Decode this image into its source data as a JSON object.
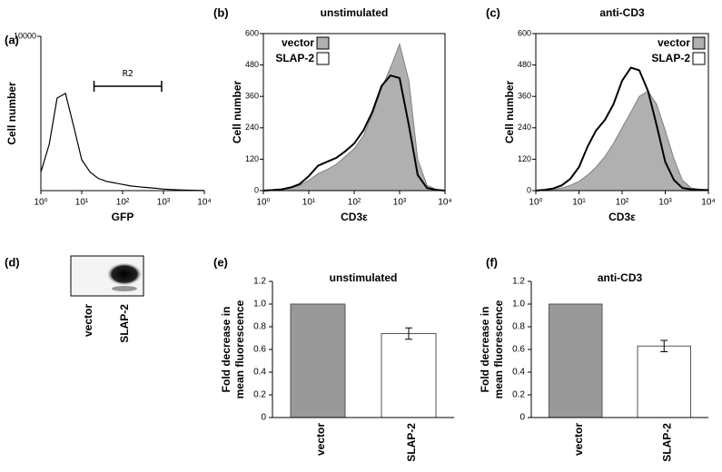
{
  "chart_data": [
    {
      "type": "line",
      "panel": "(a)",
      "ylabel": "Cell number",
      "xlabel": "GFP",
      "log_x": true,
      "frame": false,
      "xlim": [
        1,
        10000
      ],
      "xticks": [
        {
          "value": 1,
          "label": "10⁰"
        },
        {
          "value": 10,
          "label": "10¹"
        },
        {
          "value": 100,
          "label": "10²"
        },
        {
          "value": 1000,
          "label": "10³"
        },
        {
          "value": 10000,
          "label": "10⁴"
        }
      ],
      "ylim": [
        0,
        10000
      ],
      "yticks": [
        10000
      ],
      "gate": {
        "label": "R2",
        "range": [
          20,
          900
        ]
      },
      "series": [
        {
          "color": "#ffffff",
          "line": "#000000",
          "fill": false,
          "x": [
            1,
            1.6,
            2.5,
            4,
            6.3,
            10,
            16,
            25,
            40,
            63,
            100,
            160,
            250,
            400,
            630,
            1000,
            1600,
            2500,
            4000,
            6300,
            10000
          ],
          "values": [
            1200,
            3000,
            6000,
            6300,
            4200,
            2000,
            1200,
            800,
            600,
            500,
            400,
            300,
            250,
            200,
            150,
            100,
            70,
            50,
            30,
            20,
            10
          ]
        }
      ]
    },
    {
      "type": "line",
      "panel": "(b)",
      "title": "unstimulated",
      "ylabel": "Cell number",
      "xlabel": "CD3ε",
      "log_x": true,
      "frame": true,
      "legend": "upper left",
      "xlim": [
        1,
        10000
      ],
      "xticks": [
        {
          "value": 1,
          "label": "10⁰"
        },
        {
          "value": 10,
          "label": "10¹"
        },
        {
          "value": 100,
          "label": "10²"
        },
        {
          "value": 1000,
          "label": "10³"
        },
        {
          "value": 10000,
          "label": "10⁴"
        }
      ],
      "ylim": [
        0,
        600
      ],
      "yticks": [
        0,
        120,
        240,
        360,
        480,
        600
      ],
      "series": [
        {
          "name": "vector",
          "color": "#b0b0b0",
          "line": "#808080",
          "fill": true,
          "x": [
            1,
            1.6,
            2.5,
            4,
            6.3,
            10,
            16,
            25,
            40,
            63,
            100,
            160,
            250,
            400,
            630,
            1000,
            1600,
            2500,
            4000,
            6300,
            10000
          ],
          "values": [
            0,
            2,
            5,
            10,
            20,
            40,
            65,
            80,
            100,
            130,
            160,
            210,
            290,
            390,
            470,
            560,
            420,
            120,
            20,
            5,
            0
          ]
        },
        {
          "name": "SLAP-2",
          "color": "#ffffff",
          "line": "#000000",
          "fill": false,
          "x": [
            1,
            1.6,
            2.5,
            4,
            6.3,
            10,
            16,
            25,
            40,
            63,
            100,
            160,
            250,
            400,
            630,
            1000,
            1600,
            2500,
            4000,
            6300,
            10000
          ],
          "values": [
            0,
            2,
            5,
            12,
            25,
            55,
            95,
            110,
            125,
            150,
            180,
            230,
            300,
            400,
            440,
            430,
            250,
            60,
            10,
            3,
            0
          ]
        }
      ]
    },
    {
      "type": "line",
      "panel": "(c)",
      "title": "anti-CD3",
      "ylabel": "Cell number",
      "xlabel": "CD3ε",
      "log_x": true,
      "frame": true,
      "legend": "upper right",
      "xlim": [
        1,
        10000
      ],
      "xticks": [
        {
          "value": 1,
          "label": "10⁰"
        },
        {
          "value": 10,
          "label": "10¹"
        },
        {
          "value": 100,
          "label": "10²"
        },
        {
          "value": 1000,
          "label": "10³"
        },
        {
          "value": 10000,
          "label": "10⁴"
        }
      ],
      "ylim": [
        0,
        600
      ],
      "yticks": [
        0,
        120,
        240,
        360,
        480,
        600
      ],
      "series": [
        {
          "name": "vector",
          "color": "#b0b0b0",
          "line": "#808080",
          "fill": true,
          "x": [
            1,
            1.6,
            2.5,
            4,
            6.3,
            10,
            16,
            25,
            40,
            63,
            100,
            160,
            250,
            400,
            630,
            1000,
            1600,
            2500,
            4000,
            6300,
            10000
          ],
          "values": [
            0,
            2,
            5,
            10,
            20,
            35,
            60,
            90,
            130,
            180,
            240,
            300,
            360,
            380,
            330,
            230,
            120,
            40,
            10,
            5,
            2
          ]
        },
        {
          "name": "SLAP-2",
          "color": "#ffffff",
          "line": "#000000",
          "fill": false,
          "x": [
            1,
            1.6,
            2.5,
            4,
            6.3,
            10,
            16,
            25,
            40,
            63,
            100,
            160,
            250,
            400,
            630,
            1000,
            1600,
            2500,
            4000,
            6300,
            10000
          ],
          "values": [
            0,
            3,
            8,
            20,
            45,
            90,
            170,
            230,
            270,
            330,
            420,
            470,
            460,
            380,
            250,
            110,
            40,
            10,
            5,
            3,
            2
          ]
        }
      ]
    },
    {
      "type": "bar",
      "panel": "(e)",
      "title": "unstimulated",
      "ylabel": [
        "Fold decrease in",
        "mean fluorescence"
      ],
      "categories": [
        "vector",
        "SLAP-2"
      ],
      "values": [
        1,
        0.74
      ],
      "errors": [
        null,
        0.05
      ],
      "colors": [
        "#999999",
        "#ffffff"
      ],
      "ylim": [
        0,
        1.2
      ],
      "yticks": [
        0,
        0.2,
        0.4,
        0.6,
        0.8,
        {
          "value": 1,
          "label": "1.0"
        },
        1.2
      ]
    },
    {
      "type": "bar",
      "panel": "(f)",
      "title": "anti-CD3",
      "ylabel": [
        "Fold decrease in",
        "mean fluorescence"
      ],
      "categories": [
        "vector",
        "SLAP-2"
      ],
      "values": [
        1,
        0.63
      ],
      "errors": [
        null,
        0.05
      ],
      "colors": [
        "#999999",
        "#ffffff"
      ],
      "ylim": [
        0,
        1.2
      ],
      "yticks": [
        0,
        0.2,
        0.4,
        0.6,
        0.8,
        {
          "value": 1,
          "label": "1.0"
        },
        1.2
      ]
    }
  ],
  "blot": {
    "panel": "(d)",
    "lanes": [
      "vector",
      "SLAP-2"
    ]
  }
}
